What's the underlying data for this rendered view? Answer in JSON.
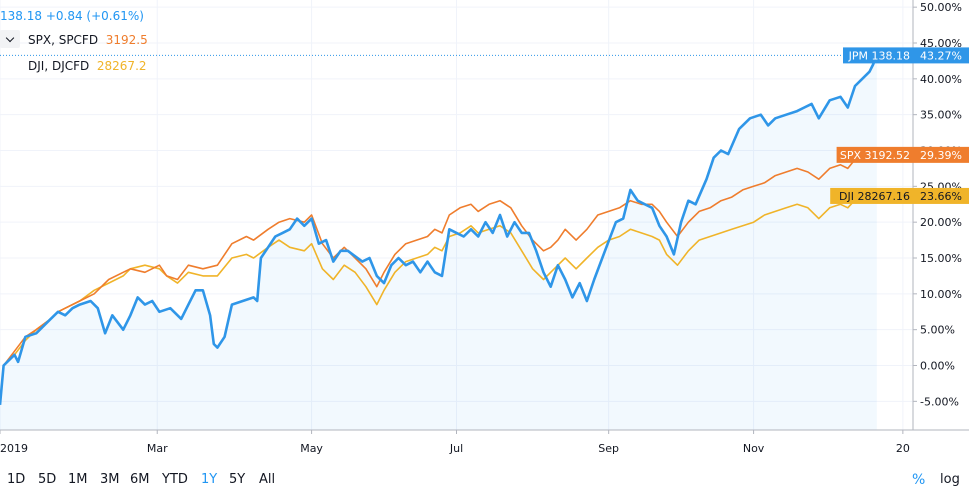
{
  "header": {
    "main_quote": "138.18",
    "main_change": "+0.84 (+0.61%)",
    "legend": [
      {
        "label": "SPX, SPCFD",
        "value": "3192.5",
        "color": "#ef7d2d"
      },
      {
        "label": "DJI, DJCFD",
        "value": "28267.2",
        "color": "#f0b429"
      }
    ]
  },
  "toolbar": {
    "ranges": [
      "1D",
      "5D",
      "1M",
      "3M",
      "6M",
      "YTD",
      "1Y",
      "5Y",
      "All"
    ],
    "active_range": "1Y",
    "percent_label": "%",
    "log_label": "log"
  },
  "chart_data": {
    "type": "line",
    "x_ticks": [
      "2019",
      "Mar",
      "May",
      "Jul",
      "Sep",
      "Nov",
      "20"
    ],
    "x_range": [
      0,
      12.6
    ],
    "x_tick_pos": [
      0,
      2.17,
      4.3,
      6.3,
      8.4,
      10.4,
      12.46
    ],
    "ylim": [
      -9,
      51
    ],
    "y_ticks": [
      -5,
      0,
      5,
      10,
      15,
      20,
      25,
      30,
      35,
      40,
      45,
      50
    ],
    "y_tick_labels": [
      "-5.00%",
      "0.00%",
      "5.00%",
      "10.00%",
      "15.00%",
      "20.00%",
      "25.00%",
      "30.00%",
      "35.00%",
      "40.00%",
      "45.00%",
      "50.00%"
    ],
    "grid": true,
    "series": [
      {
        "name": "JPM",
        "color": "#2f96e8",
        "fill": true,
        "last_label": "JPM 138.18",
        "last_pct": "43.27%",
        "last_value": 43.27,
        "points": [
          [
            0,
            -5.5
          ],
          [
            0.05,
            0
          ],
          [
            0.2,
            1.5
          ],
          [
            0.25,
            0.5
          ],
          [
            0.35,
            4
          ],
          [
            0.5,
            4.5
          ],
          [
            0.7,
            6.5
          ],
          [
            0.8,
            7.5
          ],
          [
            0.9,
            7
          ],
          [
            1.0,
            8
          ],
          [
            1.1,
            8.5
          ],
          [
            1.25,
            9
          ],
          [
            1.35,
            8
          ],
          [
            1.45,
            4.5
          ],
          [
            1.55,
            7
          ],
          [
            1.7,
            5
          ],
          [
            1.8,
            7
          ],
          [
            1.9,
            9.5
          ],
          [
            2.0,
            8.5
          ],
          [
            2.1,
            9
          ],
          [
            2.2,
            7.5
          ],
          [
            2.35,
            8
          ],
          [
            2.5,
            6.5
          ],
          [
            2.6,
            8.5
          ],
          [
            2.7,
            10.5
          ],
          [
            2.8,
            10.5
          ],
          [
            2.9,
            7
          ],
          [
            2.95,
            3
          ],
          [
            3.0,
            2.5
          ],
          [
            3.1,
            4
          ],
          [
            3.2,
            8.5
          ],
          [
            3.35,
            9
          ],
          [
            3.5,
            9.5
          ],
          [
            3.55,
            9
          ],
          [
            3.6,
            15
          ],
          [
            3.7,
            16.5
          ],
          [
            3.8,
            18
          ],
          [
            3.9,
            18.5
          ],
          [
            4.0,
            19
          ],
          [
            4.1,
            20.5
          ],
          [
            4.2,
            19.5
          ],
          [
            4.3,
            20.5
          ],
          [
            4.4,
            17
          ],
          [
            4.5,
            17.5
          ],
          [
            4.6,
            14.5
          ],
          [
            4.7,
            16
          ],
          [
            4.8,
            16
          ],
          [
            5.0,
            14.5
          ],
          [
            5.1,
            15
          ],
          [
            5.2,
            12.5
          ],
          [
            5.3,
            11.5
          ],
          [
            5.4,
            14
          ],
          [
            5.5,
            15
          ],
          [
            5.6,
            14
          ],
          [
            5.7,
            14.5
          ],
          [
            5.8,
            13
          ],
          [
            5.9,
            14.5
          ],
          [
            6.0,
            13
          ],
          [
            6.1,
            12.5
          ],
          [
            6.2,
            19
          ],
          [
            6.3,
            18.5
          ],
          [
            6.4,
            18
          ],
          [
            6.5,
            19
          ],
          [
            6.6,
            18
          ],
          [
            6.7,
            20
          ],
          [
            6.8,
            18.5
          ],
          [
            6.9,
            21
          ],
          [
            7.0,
            18
          ],
          [
            7.1,
            20
          ],
          [
            7.2,
            18.5
          ],
          [
            7.3,
            18.5
          ],
          [
            7.4,
            16
          ],
          [
            7.5,
            13
          ],
          [
            7.6,
            11
          ],
          [
            7.7,
            14
          ],
          [
            7.8,
            12
          ],
          [
            7.9,
            9.5
          ],
          [
            8.0,
            11.5
          ],
          [
            8.1,
            9
          ],
          [
            8.2,
            12
          ],
          [
            8.35,
            16
          ],
          [
            8.5,
            20
          ],
          [
            8.6,
            20.5
          ],
          [
            8.7,
            24.5
          ],
          [
            8.8,
            23
          ],
          [
            8.9,
            22.5
          ],
          [
            9.0,
            22
          ],
          [
            9.1,
            19.5
          ],
          [
            9.2,
            18
          ],
          [
            9.3,
            15.5
          ],
          [
            9.4,
            20
          ],
          [
            9.5,
            23
          ],
          [
            9.6,
            22.5
          ],
          [
            9.75,
            26
          ],
          [
            9.85,
            29
          ],
          [
            9.95,
            30
          ],
          [
            10.05,
            29.5
          ],
          [
            10.2,
            33
          ],
          [
            10.35,
            34.5
          ],
          [
            10.5,
            35
          ],
          [
            10.6,
            33.5
          ],
          [
            10.7,
            34.5
          ],
          [
            10.85,
            35
          ],
          [
            11.0,
            35.5
          ],
          [
            11.1,
            36
          ],
          [
            11.2,
            36.5
          ],
          [
            11.3,
            34.5
          ],
          [
            11.45,
            37
          ],
          [
            11.6,
            37.5
          ],
          [
            11.7,
            36
          ],
          [
            11.8,
            39
          ],
          [
            11.9,
            40
          ],
          [
            12.0,
            41
          ],
          [
            12.05,
            42
          ],
          [
            12.1,
            43.27
          ]
        ]
      },
      {
        "name": "SPX",
        "color": "#ef7d2d",
        "fill": false,
        "last_label": "SPX 3192.52",
        "last_pct": "29.39%",
        "last_value": 29.39,
        "points": [
          [
            0.05,
            0
          ],
          [
            0.2,
            2
          ],
          [
            0.35,
            4
          ],
          [
            0.5,
            5
          ],
          [
            0.7,
            6.5
          ],
          [
            0.8,
            7.5
          ],
          [
            0.9,
            8
          ],
          [
            1.1,
            9
          ],
          [
            1.3,
            10
          ],
          [
            1.5,
            12
          ],
          [
            1.7,
            13
          ],
          [
            1.8,
            13.5
          ],
          [
            2.0,
            13
          ],
          [
            2.2,
            14
          ],
          [
            2.3,
            12.5
          ],
          [
            2.45,
            12
          ],
          [
            2.6,
            14
          ],
          [
            2.8,
            13.5
          ],
          [
            3.0,
            14
          ],
          [
            3.2,
            17
          ],
          [
            3.4,
            18
          ],
          [
            3.5,
            17.5
          ],
          [
            3.7,
            19
          ],
          [
            3.85,
            20
          ],
          [
            4.0,
            20.5
          ],
          [
            4.2,
            20
          ],
          [
            4.3,
            21
          ],
          [
            4.45,
            17
          ],
          [
            4.6,
            15
          ],
          [
            4.75,
            16.5
          ],
          [
            4.9,
            15
          ],
          [
            5.05,
            13.5
          ],
          [
            5.2,
            11
          ],
          [
            5.3,
            13
          ],
          [
            5.45,
            15.5
          ],
          [
            5.6,
            17
          ],
          [
            5.75,
            17.5
          ],
          [
            5.9,
            18
          ],
          [
            6.0,
            19
          ],
          [
            6.1,
            18.5
          ],
          [
            6.2,
            21
          ],
          [
            6.35,
            22
          ],
          [
            6.5,
            22.5
          ],
          [
            6.6,
            21.5
          ],
          [
            6.75,
            22.5
          ],
          [
            6.9,
            23
          ],
          [
            7.05,
            22
          ],
          [
            7.2,
            19.5
          ],
          [
            7.35,
            17.5
          ],
          [
            7.5,
            16
          ],
          [
            7.6,
            16.5
          ],
          [
            7.7,
            17.5
          ],
          [
            7.8,
            19
          ],
          [
            7.95,
            17.5
          ],
          [
            8.1,
            19
          ],
          [
            8.25,
            21
          ],
          [
            8.4,
            21.5
          ],
          [
            8.55,
            22
          ],
          [
            8.7,
            23
          ],
          [
            8.85,
            22.5
          ],
          [
            9.0,
            22.5
          ],
          [
            9.1,
            21.5
          ],
          [
            9.2,
            20
          ],
          [
            9.35,
            18
          ],
          [
            9.5,
            20
          ],
          [
            9.65,
            21.5
          ],
          [
            9.8,
            22
          ],
          [
            9.95,
            23
          ],
          [
            10.1,
            23.5
          ],
          [
            10.25,
            24.5
          ],
          [
            10.4,
            25
          ],
          [
            10.55,
            25.5
          ],
          [
            10.7,
            26.5
          ],
          [
            10.85,
            27
          ],
          [
            11.0,
            27.5
          ],
          [
            11.15,
            27
          ],
          [
            11.3,
            26
          ],
          [
            11.45,
            27.5
          ],
          [
            11.6,
            28
          ],
          [
            11.7,
            27.5
          ],
          [
            11.85,
            29.39
          ]
        ]
      },
      {
        "name": "DJI",
        "color": "#f0b429",
        "fill": false,
        "last_label": "DJI 28267.16",
        "last_pct": "23.66%",
        "last_value": 23.66,
        "points": [
          [
            0.05,
            0
          ],
          [
            0.2,
            1.5
          ],
          [
            0.35,
            3.5
          ],
          [
            0.5,
            5
          ],
          [
            0.7,
            6.5
          ],
          [
            0.8,
            7.5
          ],
          [
            0.9,
            8
          ],
          [
            1.1,
            9
          ],
          [
            1.3,
            10.5
          ],
          [
            1.5,
            11.5
          ],
          [
            1.7,
            12.5
          ],
          [
            1.8,
            13.5
          ],
          [
            2.0,
            14
          ],
          [
            2.2,
            13.5
          ],
          [
            2.3,
            12.5
          ],
          [
            2.45,
            11.5
          ],
          [
            2.6,
            13
          ],
          [
            2.8,
            12.5
          ],
          [
            3.0,
            12.5
          ],
          [
            3.2,
            15
          ],
          [
            3.4,
            15.5
          ],
          [
            3.5,
            15
          ],
          [
            3.7,
            16.5
          ],
          [
            3.85,
            17.5
          ],
          [
            4.0,
            16.5
          ],
          [
            4.2,
            16
          ],
          [
            4.3,
            17
          ],
          [
            4.45,
            13.5
          ],
          [
            4.6,
            12
          ],
          [
            4.75,
            14
          ],
          [
            4.9,
            13
          ],
          [
            5.05,
            11
          ],
          [
            5.2,
            8.5
          ],
          [
            5.3,
            10.5
          ],
          [
            5.45,
            13
          ],
          [
            5.6,
            14.5
          ],
          [
            5.75,
            15
          ],
          [
            5.9,
            15.5
          ],
          [
            6.0,
            16.5
          ],
          [
            6.1,
            16
          ],
          [
            6.2,
            18
          ],
          [
            6.35,
            18.5
          ],
          [
            6.5,
            19.5
          ],
          [
            6.6,
            18.5
          ],
          [
            6.75,
            19
          ],
          [
            6.9,
            19.5
          ],
          [
            7.05,
            18.5
          ],
          [
            7.2,
            16
          ],
          [
            7.35,
            13.5
          ],
          [
            7.5,
            12
          ],
          [
            7.6,
            13
          ],
          [
            7.7,
            14
          ],
          [
            7.8,
            15
          ],
          [
            7.95,
            13.5
          ],
          [
            8.1,
            15
          ],
          [
            8.25,
            16.5
          ],
          [
            8.4,
            17.5
          ],
          [
            8.55,
            18
          ],
          [
            8.7,
            19
          ],
          [
            8.85,
            18.5
          ],
          [
            9.0,
            18
          ],
          [
            9.1,
            17.5
          ],
          [
            9.2,
            15.5
          ],
          [
            9.35,
            14
          ],
          [
            9.5,
            16
          ],
          [
            9.65,
            17.5
          ],
          [
            9.8,
            18
          ],
          [
            9.95,
            18.5
          ],
          [
            10.1,
            19
          ],
          [
            10.25,
            19.5
          ],
          [
            10.4,
            20
          ],
          [
            10.55,
            21
          ],
          [
            10.7,
            21.5
          ],
          [
            10.85,
            22
          ],
          [
            11.0,
            22.5
          ],
          [
            11.15,
            22
          ],
          [
            11.3,
            20.5
          ],
          [
            11.45,
            22
          ],
          [
            11.6,
            22.5
          ],
          [
            11.7,
            22
          ],
          [
            11.85,
            23.66
          ]
        ]
      }
    ]
  }
}
